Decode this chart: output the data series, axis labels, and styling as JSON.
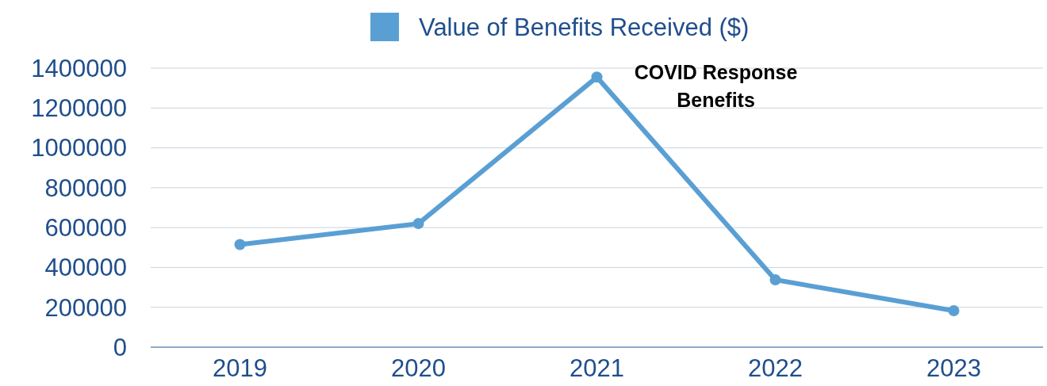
{
  "chart_data": {
    "type": "line",
    "categories": [
      "2019",
      "2020",
      "2021",
      "2022",
      "2023"
    ],
    "series": [
      {
        "name": "Value of Benefits Received ($)",
        "color": "#5a9fd4",
        "values": [
          515000,
          620000,
          1355000,
          338000,
          183000
        ]
      }
    ],
    "ylim": [
      0,
      1400000
    ],
    "yticks": [
      0,
      200000,
      400000,
      600000,
      800000,
      1000000,
      1200000,
      1400000
    ],
    "grid": "y",
    "legend": "top",
    "marker": "circle",
    "line_style": "solid",
    "annotations": [
      {
        "text": "COVID Response Benefits",
        "x": "2021",
        "y": 1355000
      }
    ]
  }
}
